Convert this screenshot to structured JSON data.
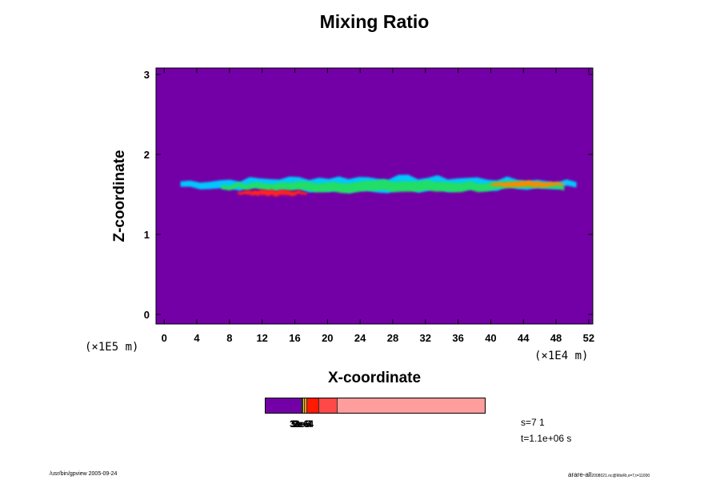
{
  "chart_data": {
    "type": "heatmap",
    "title": "Mixing Ratio",
    "xlabel": "X-coordinate",
    "ylabel": "Z-coordinate",
    "x_unit_label": "(×1E4 m)",
    "y_unit_label": "(×1E5 m)",
    "xlim": [
      -1,
      52.5
    ],
    "ylim": [
      -0.12,
      3.08
    ],
    "x_ticks": [
      "0",
      "4",
      "8",
      "12",
      "16",
      "20",
      "24",
      "28",
      "32",
      "36",
      "40",
      "44",
      "48",
      "52"
    ],
    "y_ticks": [
      "0",
      "1",
      "2",
      "3"
    ],
    "background_color": "#7300a6",
    "colorbar": {
      "colors": [
        "#7300a6",
        "#1e1e96",
        "#ffd700",
        "#ff9500",
        "#ff1a00",
        "#ff4848",
        "#ff9c9c"
      ],
      "overlapping_labels": [
        "3e-6",
        "5e-5",
        "2e-4",
        "3e-4"
      ]
    },
    "field_features": [
      {
        "x_range": [
          2,
          50.5
        ],
        "z_center": 1.63,
        "band": "outer envelope",
        "color": "#00c8ff"
      },
      {
        "x_range": [
          7,
          49
        ],
        "z_center": 1.6,
        "band": "mid",
        "color": "#22dd66"
      },
      {
        "x_range": [
          9,
          17.5
        ],
        "z_center": 1.52,
        "band": "core",
        "color": "#ff2222"
      },
      {
        "x_range": [
          40,
          49
        ],
        "z_center": 1.63,
        "band": "core",
        "color": "#ff8800"
      }
    ]
  },
  "info": {
    "s_label": "s=7 1",
    "t_label": "t=1.1e+06 s"
  },
  "footer": {
    "left": "/usr/bin/gpview 2005-09-24",
    "right_main": "arare-all",
    "right_sub": "2008021.nc@MixRt,x=7,t=11000"
  }
}
